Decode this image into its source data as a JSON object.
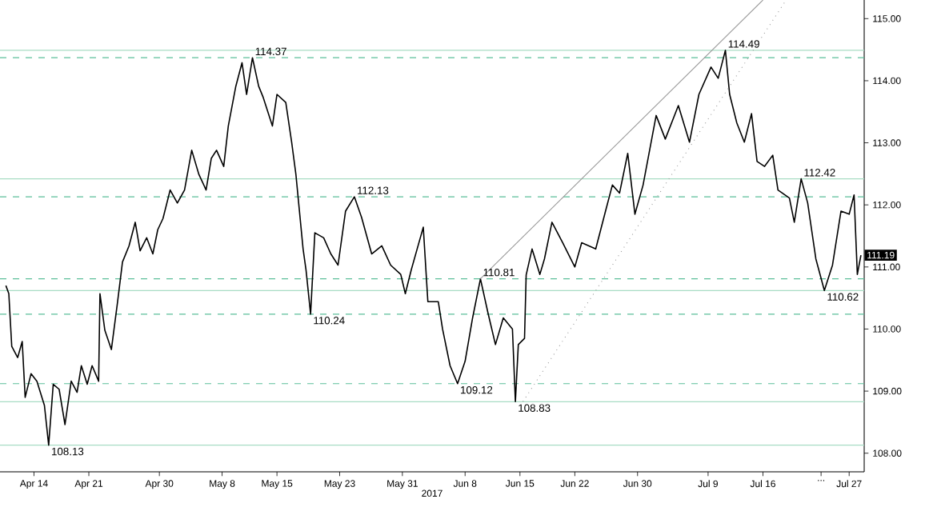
{
  "chart_data": {
    "type": "line",
    "xlabel": "2017",
    "grid": false,
    "marker": "none",
    "line_style": "solid",
    "xlim": [
      "2017-04-09T16:00",
      "2017-07-28T22:00"
    ],
    "ylim": [
      107.7,
      115.3
    ],
    "xticks": [
      {
        "value": "2017-04-14",
        "label": "Apr 14"
      },
      {
        "value": "2017-04-21",
        "label": "Apr 21"
      },
      {
        "value": "2017-04-30",
        "label": "Apr 30"
      },
      {
        "value": "2017-05-08",
        "label": "May 8"
      },
      {
        "value": "2017-05-15",
        "label": "May 15"
      },
      {
        "value": "2017-05-23",
        "label": "May 23"
      },
      {
        "value": "2017-05-31",
        "label": "May 31"
      },
      {
        "value": "2017-06-08",
        "label": "Jun 8"
      },
      {
        "value": "2017-06-15",
        "label": "Jun 15"
      },
      {
        "value": "2017-06-22",
        "label": "Jun 22"
      },
      {
        "value": "2017-06-30",
        "label": "Jun 30"
      },
      {
        "value": "2017-07-09",
        "label": "Jul 9"
      },
      {
        "value": "2017-07-16",
        "label": "Jul 16"
      },
      {
        "value": "2017-07-23T10:00",
        "label": "..."
      },
      {
        "value": "2017-07-27",
        "label": "Jul 27"
      }
    ],
    "yticks": [
      {
        "value": 108,
        "label": "108.00"
      },
      {
        "value": 109,
        "label": "109.00"
      },
      {
        "value": 110,
        "label": "110.00"
      },
      {
        "value": 111,
        "label": "111.00"
      },
      {
        "value": 112,
        "label": "112.00"
      },
      {
        "value": 113,
        "label": "113.00"
      },
      {
        "value": 114,
        "label": "114.00"
      },
      {
        "value": 115,
        "label": "115.00"
      }
    ],
    "series": [
      {
        "color": "#000000",
        "x": [
          "2017-04-10T10:00",
          "2017-04-10T19:00",
          "2017-04-11T04:00",
          "2017-04-11T22:00",
          "2017-04-12T12:00",
          "2017-04-12T21:00",
          "2017-04-13T15:00",
          "2017-04-14T09:00",
          "2017-04-15T08:00",
          "2017-04-15T21:00",
          "2017-04-16T11:00",
          "2017-04-17T05:00",
          "2017-04-17T23:00",
          "2017-04-18T18:00",
          "2017-04-19T12:00",
          "2017-04-20T01:00",
          "2017-04-20T19:00",
          "2017-04-21T10:00",
          "2017-04-22T06:00",
          "2017-04-22T10:00",
          "2017-04-23T01:00",
          "2017-04-23T21:00",
          "2017-04-24T16:00",
          "2017-04-25T07:00",
          "2017-04-26T03:00",
          "2017-04-26T22:00",
          "2017-04-27T13:00",
          "2017-04-28T09:00",
          "2017-04-29T04:00",
          "2017-04-29T19:00",
          "2017-04-30T11:00",
          "2017-05-01T09:00",
          "2017-05-02T07:00",
          "2017-05-03T05:00",
          "2017-05-04T03:00",
          "2017-05-05T01:00",
          "2017-05-05T23:00",
          "2017-05-06T15:00",
          "2017-05-07T07:00",
          "2017-05-08T05:00",
          "2017-05-08T19:00",
          "2017-05-09T18:00",
          "2017-05-10T13:00",
          "2017-05-11T03:00",
          "2017-05-11T21:00",
          "2017-05-12T16:00",
          "2017-05-13T06:00",
          "2017-05-14T10:00",
          "2017-05-15T00:00",
          "2017-05-16T03:00",
          "2017-05-16T21:00",
          "2017-05-17T10:00",
          "2017-05-18T08:00",
          "2017-05-18T17:00",
          "2017-05-19T07:00",
          "2017-05-19T20:00",
          "2017-05-20T23:00",
          "2017-05-21T21:00",
          "2017-05-22T19:00",
          "2017-05-23T18:00",
          "2017-05-24T21:00",
          "2017-05-25T19:00",
          "2017-05-27T02:00",
          "2017-05-28T09:00",
          "2017-05-29T12:00",
          "2017-05-30T19:00",
          "2017-05-31T09:00",
          "2017-06-01T03:00",
          "2017-06-02T16:00",
          "2017-06-03T06:00",
          "2017-06-04T14:00",
          "2017-06-05T03:00",
          "2017-06-06T02:00",
          "2017-06-07T01:00",
          "2017-06-08T00:00",
          "2017-06-08T23:00",
          "2017-06-09T23:00",
          "2017-06-10T22:00",
          "2017-06-11T21:00",
          "2017-06-12T21:00",
          "2017-06-14T01:00",
          "2017-06-14T10:00",
          "2017-06-14T19:00",
          "2017-06-15T14:00",
          "2017-06-15T19:00",
          "2017-06-16T13:00",
          "2017-06-17T13:00",
          "2017-06-18T03:00",
          "2017-06-19T02:00",
          "2017-06-20T11:00",
          "2017-06-22T00:00",
          "2017-06-22T21:00",
          "2017-06-24T16:00",
          "2017-06-25T22:00",
          "2017-06-26T19:00",
          "2017-06-27T17:00",
          "2017-06-28T18:00",
          "2017-06-29T16:00",
          "2017-06-30T17:00",
          "2017-07-02T09:00",
          "2017-07-03T13:00",
          "2017-07-05T05:00",
          "2017-07-06T15:00",
          "2017-07-07T20:00",
          "2017-07-09T09:00",
          "2017-07-10T07:00",
          "2017-07-11T05:00",
          "2017-07-11T18:00",
          "2017-07-12T16:00",
          "2017-07-13T15:00",
          "2017-07-14T13:00",
          "2017-07-15T06:00",
          "2017-07-16T05:00",
          "2017-07-17T06:00",
          "2017-07-17T22:00",
          "2017-07-19T09:00",
          "2017-07-20T00:00",
          "2017-07-20T21:00",
          "2017-07-21T17:00",
          "2017-07-22T18:00",
          "2017-07-23T20:00",
          "2017-07-24T21:00",
          "2017-07-25T23:00",
          "2017-07-27T00:00",
          "2017-07-27T15:00",
          "2017-07-28T01:00",
          "2017-07-28T12:00"
        ],
        "values": [
          110.7,
          110.57,
          109.72,
          109.54,
          109.8,
          108.9,
          109.28,
          109.16,
          108.77,
          108.13,
          109.11,
          109.03,
          108.46,
          109.16,
          108.98,
          109.41,
          109.11,
          109.41,
          109.16,
          110.57,
          109.98,
          109.67,
          110.44,
          111.08,
          111.34,
          111.72,
          111.26,
          111.47,
          111.21,
          111.6,
          111.78,
          112.24,
          112.03,
          112.24,
          112.88,
          112.49,
          112.24,
          112.75,
          112.88,
          112.62,
          113.27,
          113.91,
          114.29,
          113.78,
          114.37,
          113.91,
          113.73,
          113.27,
          113.78,
          113.65,
          113.01,
          112.49,
          111.29,
          110.95,
          110.24,
          111.55,
          111.47,
          111.21,
          111.03,
          111.9,
          112.13,
          111.8,
          111.21,
          111.34,
          111.03,
          110.88,
          110.57,
          110.95,
          111.64,
          110.44,
          110.44,
          110.0,
          109.41,
          109.12,
          109.48,
          110.18,
          110.81,
          110.26,
          109.75,
          110.18,
          110.0,
          108.83,
          109.75,
          109.85,
          110.87,
          111.29,
          110.88,
          111.13,
          111.72,
          111.39,
          111.0,
          111.39,
          111.29,
          111.9,
          112.32,
          112.19,
          112.83,
          111.85,
          112.32,
          113.44,
          113.06,
          113.6,
          113.01,
          113.78,
          114.22,
          114.04,
          114.49,
          113.78,
          113.32,
          113.01,
          113.47,
          112.7,
          112.62,
          112.8,
          112.24,
          112.11,
          111.72,
          112.42,
          112.03,
          111.13,
          110.62,
          111.03,
          111.9,
          111.85,
          112.16,
          110.88,
          111.19
        ]
      },
      {
        "color": "#999999",
        "x": [
          "2017-06-09T23:00",
          "2017-07-16T00:00"
        ],
        "values": [
          110.81,
          115.3
        ]
      },
      {
        "color": "#999999",
        "line_style": "dotted",
        "x": [
          "2017-06-15T09:00",
          "2017-07-18T23:00"
        ],
        "values": [
          108.83,
          115.3
        ]
      }
    ],
    "ref_lines": [
      {
        "axis": "y",
        "value": 114.37,
        "color": "#5cbf9a",
        "line_style": "dashed"
      },
      {
        "axis": "y",
        "value": 112.13,
        "color": "#5cbf9a",
        "line_style": "dashed"
      },
      {
        "axis": "y",
        "value": 110.81,
        "color": "#5cbf9a",
        "line_style": "dashed"
      },
      {
        "axis": "y",
        "value": 110.24,
        "color": "#5cbf9a",
        "line_style": "dashed"
      },
      {
        "axis": "y",
        "value": 109.12,
        "color": "#5cbf9a",
        "line_style": "dashed"
      },
      {
        "axis": "y",
        "value": 114.49,
        "color": "#a8dcc4",
        "line_style": "solid"
      },
      {
        "axis": "y",
        "value": 112.42,
        "color": "#a8dcc4",
        "line_style": "solid"
      },
      {
        "axis": "y",
        "value": 110.62,
        "color": "#a8dcc4",
        "line_style": "solid"
      },
      {
        "axis": "y",
        "value": 108.83,
        "color": "#a8dcc4",
        "line_style": "solid"
      },
      {
        "axis": "y",
        "value": 108.13,
        "color": "#a8dcc4",
        "line_style": "solid"
      }
    ],
    "annotations": [
      {
        "text": "114.37",
        "x": "2017-05-11T21:00",
        "y": 114.37
      },
      {
        "text": "108.13",
        "x": "2017-04-15T21:00",
        "y": 108.13
      },
      {
        "text": "110.24",
        "x": "2017-05-19T07:00",
        "y": 110.24
      },
      {
        "text": "112.13",
        "x": "2017-05-24T21:00",
        "y": 112.13
      },
      {
        "text": "109.12",
        "x": "2017-06-07T01:00",
        "y": 109.12
      },
      {
        "text": "110.81",
        "x": "2017-06-09T23:00",
        "y": 110.81
      },
      {
        "text": "108.83",
        "x": "2017-06-14T10:00",
        "y": 108.83
      },
      {
        "text": "114.49",
        "x": "2017-07-11T05:00",
        "y": 114.49
      },
      {
        "text": "112.42",
        "x": "2017-07-20T21:00",
        "y": 112.42
      },
      {
        "text": "110.62",
        "x": "2017-07-23T20:00",
        "y": 110.62
      },
      {
        "text": "111.19",
        "x": "2017-07-28T22:00",
        "y": 111.19
      }
    ]
  }
}
